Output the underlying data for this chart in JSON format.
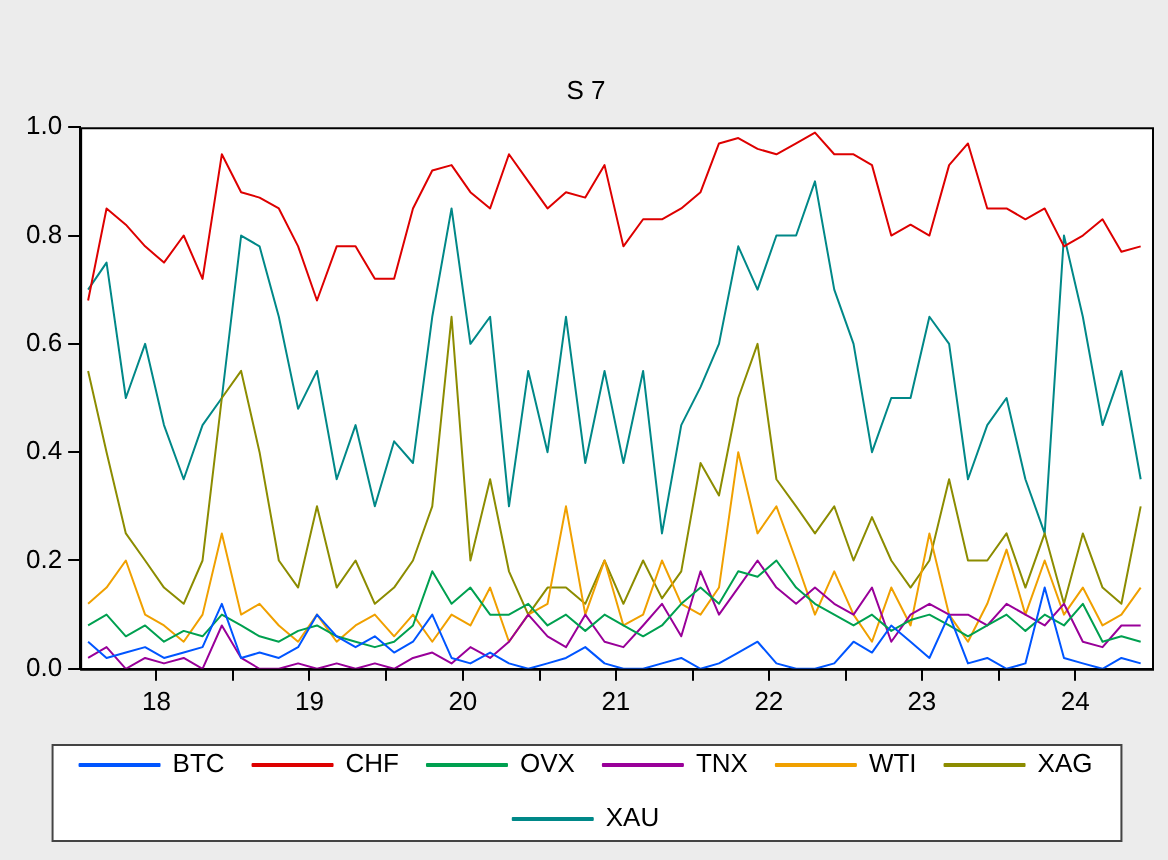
{
  "chart_data": {
    "type": "line",
    "title": "S 7",
    "x": [
      "2018-01-20",
      "2018-03-05",
      "2018-04-20",
      "2018-06-05",
      "2018-07-20",
      "2018-09-05",
      "2018-10-20",
      "2018-12-05",
      "2019-01-20",
      "2019-03-05",
      "2019-04-20",
      "2019-06-05",
      "2019-07-20",
      "2019-09-05",
      "2019-10-20",
      "2019-12-05",
      "2020-01-20",
      "2020-03-05",
      "2020-04-20",
      "2020-06-05",
      "2020-07-20",
      "2020-09-05",
      "2020-10-20",
      "2020-12-05",
      "2021-01-20",
      "2021-03-05",
      "2021-04-20",
      "2021-06-05",
      "2021-07-20",
      "2021-09-05",
      "2021-10-20",
      "2021-12-05",
      "2022-01-20",
      "2022-03-05",
      "2022-04-20",
      "2022-06-05",
      "2022-07-20",
      "2022-09-05",
      "2022-10-20",
      "2022-12-05",
      "2023-01-20",
      "2023-03-05",
      "2023-04-20",
      "2023-06-05",
      "2023-07-20",
      "2023-09-05",
      "2023-10-20",
      "2023-12-05",
      "2024-01-20",
      "2024-03-05",
      "2024-04-20",
      "2024-06-05",
      "2024-07-20",
      "2024-09-05",
      "2024-10-20",
      "2024-12-05"
    ],
    "series": [
      {
        "name": "BTC",
        "color": "#0055ff",
        "values": [
          0.05,
          0.02,
          0.03,
          0.04,
          0.02,
          0.03,
          0.04,
          0.12,
          0.02,
          0.03,
          0.02,
          0.04,
          0.1,
          0.06,
          0.04,
          0.06,
          0.03,
          0.05,
          0.1,
          0.02,
          0.01,
          0.03,
          0.01,
          0,
          0.01,
          0.02,
          0.04,
          0.01,
          0,
          0,
          0.01,
          0.02,
          0,
          0.01,
          0.03,
          0.05,
          0.01,
          0,
          0,
          0.01,
          0.05,
          0.03,
          0.08,
          0.05,
          0.02,
          0.1,
          0.01,
          0.02,
          0,
          0.01,
          0.15,
          0.02,
          0.01,
          0,
          0.02,
          0.01
        ]
      },
      {
        "name": "CHF",
        "color": "#dd0000",
        "values": [
          0.68,
          0.85,
          0.82,
          0.78,
          0.75,
          0.8,
          0.72,
          0.95,
          0.88,
          0.87,
          0.85,
          0.78,
          0.68,
          0.78,
          0.78,
          0.72,
          0.72,
          0.85,
          0.92,
          0.93,
          0.88,
          0.85,
          0.95,
          0.9,
          0.85,
          0.88,
          0.87,
          0.93,
          0.78,
          0.83,
          0.83,
          0.85,
          0.88,
          0.97,
          0.98,
          0.96,
          0.95,
          0.97,
          0.99,
          0.95,
          0.95,
          0.93,
          0.8,
          0.82,
          0.8,
          0.93,
          0.97,
          0.85,
          0.85,
          0.83,
          0.85,
          0.78,
          0.8,
          0.83,
          0.77,
          0.78
        ]
      },
      {
        "name": "OVX",
        "color": "#00a050",
        "values": [
          0.08,
          0.1,
          0.06,
          0.08,
          0.05,
          0.07,
          0.06,
          0.1,
          0.08,
          0.06,
          0.05,
          0.07,
          0.08,
          0.06,
          0.05,
          0.04,
          0.05,
          0.08,
          0.18,
          0.12,
          0.15,
          0.1,
          0.1,
          0.12,
          0.08,
          0.1,
          0.07,
          0.1,
          0.08,
          0.06,
          0.08,
          0.12,
          0.15,
          0.12,
          0.18,
          0.17,
          0.2,
          0.15,
          0.12,
          0.1,
          0.08,
          0.1,
          0.07,
          0.09,
          0.1,
          0.08,
          0.06,
          0.08,
          0.1,
          0.07,
          0.1,
          0.08,
          0.12,
          0.05,
          0.06,
          0.05
        ]
      },
      {
        "name": "TNX",
        "color": "#990099",
        "values": [
          0.02,
          0.04,
          0,
          0.02,
          0.01,
          0.02,
          0,
          0.08,
          0.02,
          0,
          0,
          0.01,
          0,
          0.01,
          0,
          0.01,
          0,
          0.02,
          0.03,
          0.01,
          0.04,
          0.02,
          0.05,
          0.1,
          0.06,
          0.04,
          0.1,
          0.05,
          0.04,
          0.08,
          0.12,
          0.06,
          0.18,
          0.1,
          0.15,
          0.2,
          0.15,
          0.12,
          0.15,
          0.12,
          0.1,
          0.15,
          0.05,
          0.1,
          0.12,
          0.1,
          0.1,
          0.08,
          0.12,
          0.1,
          0.08,
          0.12,
          0.05,
          0.04,
          0.08,
          0.08
        ]
      },
      {
        "name": "WTI",
        "color": "#f0a000",
        "values": [
          0.12,
          0.15,
          0.2,
          0.1,
          0.08,
          0.05,
          0.1,
          0.25,
          0.1,
          0.12,
          0.08,
          0.05,
          0.1,
          0.05,
          0.08,
          0.1,
          0.06,
          0.1,
          0.05,
          0.1,
          0.08,
          0.15,
          0.05,
          0.1,
          0.12,
          0.3,
          0.1,
          0.2,
          0.08,
          0.1,
          0.2,
          0.12,
          0.1,
          0.15,
          0.4,
          0.25,
          0.3,
          0.2,
          0.1,
          0.18,
          0.1,
          0.05,
          0.15,
          0.08,
          0.25,
          0.1,
          0.05,
          0.12,
          0.22,
          0.1,
          0.2,
          0.1,
          0.15,
          0.08,
          0.1,
          0.15
        ]
      },
      {
        "name": "XAG",
        "color": "#8c8c00",
        "values": [
          0.55,
          0.4,
          0.25,
          0.2,
          0.15,
          0.12,
          0.2,
          0.5,
          0.55,
          0.4,
          0.2,
          0.15,
          0.3,
          0.15,
          0.2,
          0.12,
          0.15,
          0.2,
          0.3,
          0.65,
          0.2,
          0.35,
          0.18,
          0.1,
          0.15,
          0.15,
          0.12,
          0.2,
          0.12,
          0.2,
          0.13,
          0.18,
          0.38,
          0.32,
          0.5,
          0.6,
          0.35,
          0.3,
          0.25,
          0.3,
          0.2,
          0.28,
          0.2,
          0.15,
          0.2,
          0.35,
          0.2,
          0.2,
          0.25,
          0.15,
          0.25,
          0.12,
          0.25,
          0.15,
          0.12,
          0.3
        ]
      },
      {
        "name": "XAU",
        "color": "#008888",
        "values": [
          0.7,
          0.75,
          0.5,
          0.6,
          0.45,
          0.35,
          0.45,
          0.5,
          0.8,
          0.78,
          0.65,
          0.48,
          0.55,
          0.35,
          0.45,
          0.3,
          0.42,
          0.38,
          0.65,
          0.85,
          0.6,
          0.65,
          0.3,
          0.55,
          0.4,
          0.65,
          0.38,
          0.55,
          0.38,
          0.55,
          0.25,
          0.45,
          0.52,
          0.6,
          0.78,
          0.7,
          0.8,
          0.8,
          0.9,
          0.7,
          0.6,
          0.4,
          0.5,
          0.5,
          0.65,
          0.6,
          0.35,
          0.45,
          0.5,
          0.35,
          0.25,
          0.8,
          0.65,
          0.45,
          0.55,
          0.35
        ]
      }
    ],
    "xlim": [
      "2018-01-01",
      "2025-01-01"
    ],
    "xticks": [
      {
        "value": "2018-07-02",
        "label": "18"
      },
      {
        "value": "2019-01-01",
        "label": null
      },
      {
        "value": "2019-07-02",
        "label": "19"
      },
      {
        "value": "2020-01-01",
        "label": null
      },
      {
        "value": "2020-07-02",
        "label": "20"
      },
      {
        "value": "2021-01-01",
        "label": null
      },
      {
        "value": "2021-07-02",
        "label": "21"
      },
      {
        "value": "2022-01-01",
        "label": null
      },
      {
        "value": "2022-07-02",
        "label": "22"
      },
      {
        "value": "2023-01-01",
        "label": null
      },
      {
        "value": "2023-07-02",
        "label": "23"
      },
      {
        "value": "2024-01-01",
        "label": null
      },
      {
        "value": "2024-07-02",
        "label": "24"
      }
    ],
    "ylim": [
      0,
      1
    ],
    "yticks": [
      {
        "value": 0,
        "label": "0.0"
      },
      {
        "value": 0.2,
        "label": "0.2"
      },
      {
        "value": 0.4,
        "label": "0.4"
      },
      {
        "value": 0.6,
        "label": "0.6"
      },
      {
        "value": 0.8,
        "label": "0.8"
      },
      {
        "value": 1,
        "label": "1.0"
      }
    ],
    "grid": false,
    "legend": "bottom"
  }
}
